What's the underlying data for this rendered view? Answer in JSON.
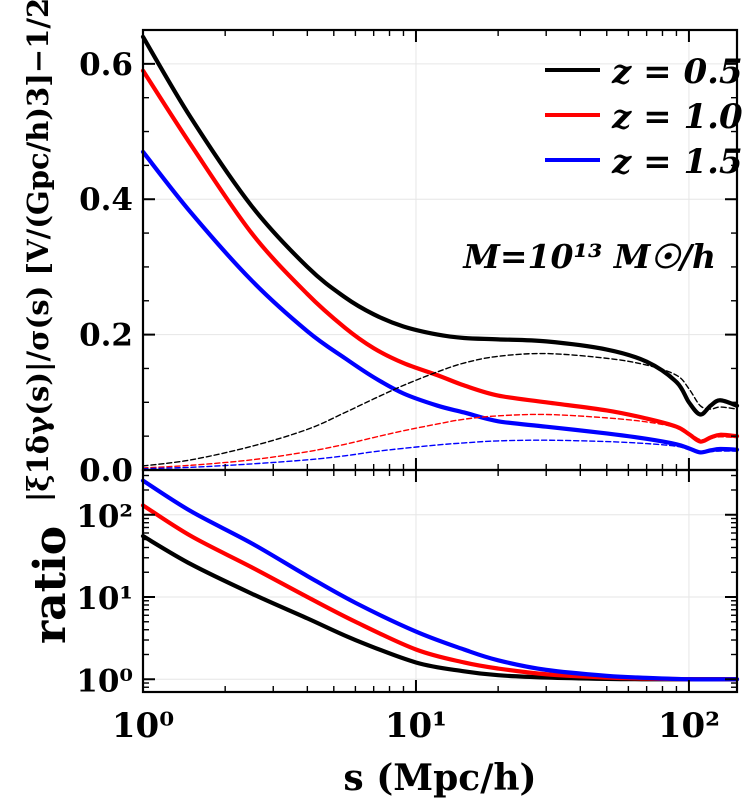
{
  "chart_data": [
    {
      "panel": "top",
      "type": "line",
      "xscale": "log",
      "xlim": [
        1,
        150
      ],
      "ylim": [
        0,
        0.65
      ],
      "grid": true,
      "legend_position": "top-right",
      "ylabel": "|ξ1δγ(s)|/σ(s) [V/(Gpc/h)3]−1/2",
      "yticks": [
        "0.0",
        "0.2",
        "0.4",
        "0.6"
      ],
      "annotation": "M=10¹³ M☉/h",
      "x": [
        1,
        1.5,
        2.5,
        4,
        5.5,
        7,
        9,
        12,
        15,
        20,
        30,
        50,
        70,
        90,
        100,
        110,
        120,
        130,
        150
      ],
      "series": [
        {
          "name": "z = 0.5",
          "color": "#000000",
          "style": "solid",
          "values": [
            0.64,
            0.52,
            0.39,
            0.3,
            0.255,
            0.23,
            0.212,
            0.2,
            0.195,
            0.193,
            0.19,
            0.178,
            0.16,
            0.13,
            0.1,
            0.082,
            0.095,
            0.103,
            0.095
          ]
        },
        {
          "name": "z = 1.0",
          "color": "#ff0000",
          "style": "solid",
          "values": [
            0.59,
            0.48,
            0.35,
            0.26,
            0.21,
            0.18,
            0.158,
            0.14,
            0.125,
            0.11,
            0.1,
            0.088,
            0.076,
            0.064,
            0.053,
            0.042,
            0.048,
            0.052,
            0.05
          ]
        },
        {
          "name": "z = 1.5",
          "color": "#0000ff",
          "style": "solid",
          "values": [
            0.47,
            0.38,
            0.28,
            0.205,
            0.165,
            0.137,
            0.113,
            0.095,
            0.085,
            0.072,
            0.064,
            0.054,
            0.046,
            0.038,
            0.032,
            0.026,
            0.029,
            0.031,
            0.03
          ]
        },
        {
          "name": "",
          "color": "#000000",
          "style": "dashed",
          "values": [
            0.006,
            0.015,
            0.035,
            0.06,
            0.085,
            0.105,
            0.125,
            0.145,
            0.158,
            0.168,
            0.172,
            0.165,
            0.155,
            0.14,
            0.12,
            0.095,
            0.09,
            0.093,
            0.09
          ]
        },
        {
          "name": "",
          "color": "#ff0000",
          "style": "dashed",
          "values": [
            0.003,
            0.007,
            0.015,
            0.027,
            0.038,
            0.048,
            0.058,
            0.068,
            0.075,
            0.08,
            0.082,
            0.077,
            0.071,
            0.063,
            0.055,
            0.045,
            0.047,
            0.049,
            0.048
          ]
        },
        {
          "name": "",
          "color": "#0000ff",
          "style": "dashed",
          "values": [
            0.002,
            0.004,
            0.009,
            0.015,
            0.021,
            0.027,
            0.032,
            0.037,
            0.04,
            0.043,
            0.044,
            0.042,
            0.039,
            0.035,
            0.03,
            0.025,
            0.027,
            0.028,
            0.028
          ]
        }
      ]
    },
    {
      "panel": "bottom",
      "type": "line",
      "xscale": "log",
      "yscale": "log",
      "xlim": [
        1,
        150
      ],
      "ylim": [
        0.7,
        350
      ],
      "grid": true,
      "ylabel": "ratio",
      "xlabel": "s (Mpc/h)",
      "xticks": [
        "10⁰",
        "10¹",
        "10²"
      ],
      "yticks": [
        "10⁰",
        "10¹",
        "10²"
      ],
      "x": [
        1,
        1.5,
        2.5,
        4,
        6,
        10,
        15,
        20,
        30,
        50,
        70,
        100,
        150
      ],
      "series": [
        {
          "name": "z = 0.5",
          "color": "#000000",
          "values": [
            55,
            25,
            11,
            5.5,
            3.0,
            1.6,
            1.25,
            1.12,
            1.05,
            1.01,
            1.0,
            1.0,
            1.0
          ]
        },
        {
          "name": "z = 1.0",
          "color": "#ff0000",
          "values": [
            130,
            55,
            23,
            10,
            5.0,
            2.3,
            1.6,
            1.35,
            1.15,
            1.05,
            1.02,
            1.0,
            1.0
          ]
        },
        {
          "name": "z = 1.5",
          "color": "#0000ff",
          "values": [
            260,
            110,
            45,
            18,
            8.5,
            3.8,
            2.3,
            1.7,
            1.3,
            1.1,
            1.04,
            1.0,
            1.0
          ]
        }
      ]
    }
  ]
}
